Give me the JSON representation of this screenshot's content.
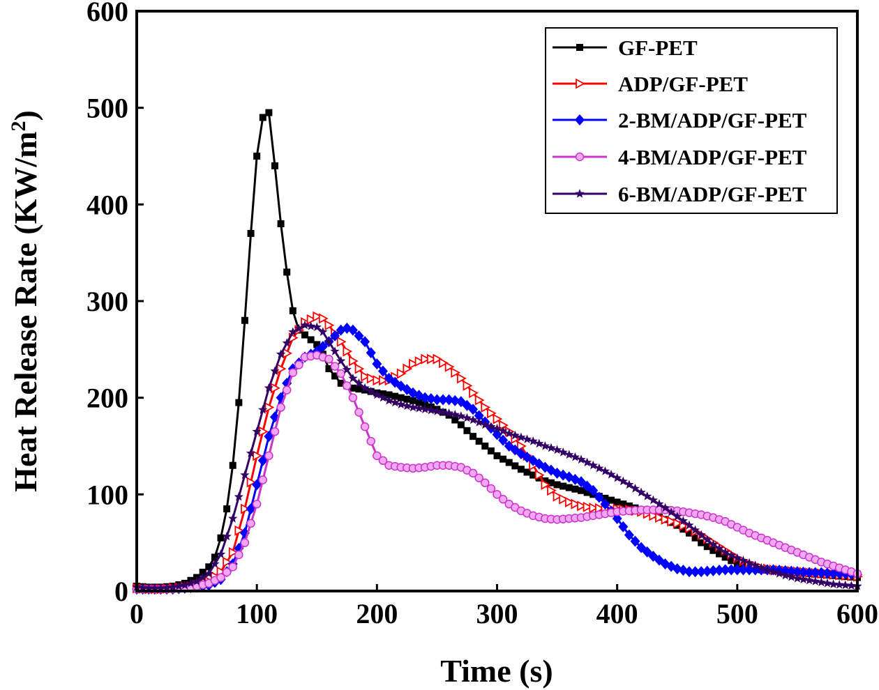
{
  "chart_data": {
    "type": "line",
    "xlabel": "Time (s)",
    "ylabel_main": "Heat Release Rate (KW/m",
    "ylabel_sup": "2",
    "ylabel_close": ")",
    "xlim": [
      0,
      600
    ],
    "ylim": [
      0,
      600
    ],
    "xticks": [
      0,
      100,
      200,
      300,
      400,
      500,
      600
    ],
    "yticks": [
      0,
      100,
      200,
      300,
      400,
      500,
      600
    ],
    "xtick_labels": [
      "0",
      "100",
      "200",
      "300",
      "400",
      "500",
      "600"
    ],
    "ytick_labels": [
      "0",
      "100",
      "200",
      "300",
      "400",
      "500",
      "600"
    ],
    "grid": false,
    "legend_position": "top-right",
    "series": [
      {
        "name": "GF-PET",
        "color": "#000000",
        "marker": "square",
        "x": [
          0,
          10,
          20,
          30,
          40,
          50,
          60,
          65,
          70,
          75,
          80,
          85,
          90,
          95,
          100,
          105,
          110,
          115,
          120,
          125,
          130,
          135,
          140,
          145,
          150,
          155,
          160,
          170,
          180,
          190,
          200,
          210,
          220,
          230,
          240,
          250,
          260,
          270,
          280,
          290,
          300,
          310,
          320,
          330,
          340,
          350,
          360,
          370,
          380,
          390,
          400,
          410,
          420,
          430,
          440,
          450,
          460,
          470,
          480,
          490,
          500,
          510,
          520,
          530,
          540,
          550,
          560,
          570,
          580,
          590,
          600
        ],
        "y": [
          5,
          4,
          4,
          5,
          8,
          14,
          25,
          35,
          55,
          85,
          130,
          195,
          280,
          370,
          450,
          490,
          495,
          440,
          380,
          330,
          290,
          270,
          265,
          260,
          255,
          245,
          230,
          215,
          210,
          208,
          205,
          203,
          200,
          197,
          193,
          188,
          182,
          172,
          160,
          150,
          140,
          133,
          126,
          120,
          114,
          110,
          107,
          104,
          100,
          96,
          92,
          88,
          84,
          79,
          74,
          68,
          60,
          50,
          42,
          35,
          28,
          24,
          22,
          21,
          20,
          19,
          18,
          17,
          16,
          15,
          14
        ]
      },
      {
        "name": "ADP/GF-PET",
        "color": "#ff0000",
        "marker": "triangle-right",
        "x": [
          0,
          10,
          20,
          30,
          40,
          50,
          60,
          70,
          80,
          90,
          100,
          110,
          120,
          130,
          140,
          150,
          155,
          160,
          170,
          180,
          190,
          200,
          210,
          220,
          230,
          240,
          250,
          260,
          270,
          280,
          290,
          300,
          310,
          320,
          330,
          340,
          350,
          360,
          370,
          380,
          390,
          400,
          410,
          420,
          430,
          440,
          450,
          460,
          470,
          480,
          490,
          500,
          510,
          520,
          530,
          540,
          550,
          560,
          570,
          580,
          590,
          600
        ],
        "y": [
          3,
          2,
          2,
          3,
          4,
          6,
          10,
          20,
          40,
          85,
          140,
          190,
          230,
          262,
          278,
          284,
          282,
          275,
          258,
          238,
          222,
          218,
          218,
          225,
          235,
          240,
          240,
          232,
          220,
          205,
          190,
          178,
          165,
          150,
          130,
          110,
          98,
          92,
          88,
          86,
          85,
          85,
          84,
          82,
          78,
          74,
          70,
          65,
          58,
          50,
          42,
          34,
          28,
          24,
          22,
          21,
          20,
          19,
          18,
          17,
          16,
          15
        ]
      },
      {
        "name": "2-BM/ADP/GF-PET",
        "color": "#0000ff",
        "marker": "diamond",
        "x": [
          0,
          10,
          20,
          30,
          40,
          50,
          60,
          70,
          80,
          90,
          100,
          110,
          120,
          130,
          140,
          150,
          160,
          170,
          175,
          180,
          190,
          200,
          210,
          220,
          230,
          240,
          250,
          260,
          270,
          280,
          290,
          300,
          310,
          320,
          330,
          340,
          350,
          360,
          370,
          380,
          390,
          400,
          410,
          420,
          430,
          440,
          450,
          460,
          470,
          480,
          490,
          500,
          510,
          520,
          530,
          540,
          550,
          560,
          570,
          580,
          590,
          600
        ],
        "y": [
          2,
          2,
          2,
          2,
          3,
          4,
          6,
          12,
          28,
          60,
          110,
          160,
          200,
          230,
          242,
          248,
          258,
          270,
          272,
          270,
          258,
          235,
          220,
          212,
          205,
          200,
          198,
          198,
          196,
          188,
          175,
          162,
          150,
          142,
          135,
          128,
          122,
          118,
          113,
          104,
          90,
          75,
          58,
          45,
          36,
          28,
          23,
          20,
          20,
          21,
          22,
          22,
          22,
          22,
          22,
          21,
          20,
          19,
          19,
          18,
          18,
          17
        ]
      },
      {
        "name": "4-BM/ADP/GF-PET",
        "color": "#cc33cc",
        "marker": "circle",
        "x": [
          0,
          10,
          20,
          30,
          40,
          50,
          60,
          70,
          80,
          90,
          100,
          110,
          120,
          130,
          140,
          150,
          160,
          170,
          180,
          190,
          200,
          210,
          220,
          230,
          240,
          250,
          260,
          270,
          280,
          290,
          300,
          310,
          320,
          330,
          340,
          350,
          360,
          370,
          380,
          390,
          400,
          410,
          420,
          430,
          440,
          450,
          460,
          470,
          480,
          490,
          500,
          510,
          520,
          530,
          540,
          550,
          560,
          570,
          580,
          590,
          600
        ],
        "y": [
          2,
          2,
          2,
          2,
          3,
          5,
          8,
          14,
          25,
          50,
          90,
          140,
          190,
          226,
          242,
          244,
          240,
          225,
          200,
          170,
          140,
          130,
          128,
          127,
          128,
          130,
          130,
          128,
          122,
          112,
          100,
          90,
          83,
          78,
          75,
          74,
          75,
          76,
          78,
          80,
          82,
          83,
          84,
          84,
          84,
          83,
          81,
          79,
          76,
          72,
          66,
          60,
          55,
          50,
          45,
          40,
          35,
          30,
          26,
          22,
          18
        ]
      },
      {
        "name": "6-BM/ADP/GF-PET",
        "color": "#330066",
        "marker": "star",
        "x": [
          0,
          10,
          20,
          30,
          40,
          50,
          60,
          70,
          80,
          90,
          100,
          110,
          120,
          130,
          140,
          150,
          155,
          160,
          170,
          180,
          190,
          200,
          210,
          220,
          230,
          240,
          250,
          260,
          270,
          280,
          290,
          300,
          310,
          320,
          330,
          340,
          350,
          360,
          370,
          380,
          390,
          400,
          410,
          420,
          430,
          440,
          450,
          460,
          470,
          480,
          490,
          500,
          510,
          520,
          530,
          540,
          550,
          560,
          570,
          580,
          590,
          600
        ],
        "y": [
          4,
          3,
          3,
          4,
          6,
          10,
          18,
          38,
          75,
          120,
          165,
          210,
          245,
          268,
          275,
          273,
          268,
          258,
          238,
          220,
          210,
          203,
          197,
          193,
          190,
          188,
          186,
          184,
          181,
          177,
          172,
          168,
          163,
          159,
          155,
          150,
          146,
          141,
          136,
          130,
          124,
          117,
          110,
          102,
          94,
          86,
          77,
          68,
          58,
          48,
          40,
          34,
          29,
          24,
          20,
          16,
          13,
          11,
          9,
          7,
          6,
          5
        ]
      }
    ]
  }
}
